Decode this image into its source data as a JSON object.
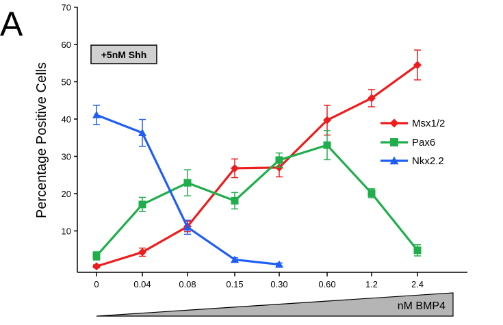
{
  "panel_label": "A",
  "treatment_label": "+5nM Shh",
  "gradient_label": "nM BMP4",
  "chart_data": {
    "type": "line",
    "title": "",
    "xlabel": "",
    "ylabel": "Percentage Positive Cells",
    "categories": [
      "0",
      "0.04",
      "0.08",
      "0.15",
      "0.30",
      "0.60",
      "1.2",
      "2.4"
    ],
    "ylim": [
      0,
      70
    ],
    "yticks": [
      10,
      20,
      30,
      40,
      50,
      60,
      70
    ],
    "legend_position": "right",
    "grid": false,
    "series": [
      {
        "name": "Msx1/2",
        "color": "#ee1c1c",
        "marker": "diamond",
        "values": [
          0.5,
          4.3,
          11.2,
          26.8,
          27.0,
          39.7,
          45.6,
          54.5
        ],
        "errors": [
          0.4,
          1.1,
          1.4,
          2.5,
          2.5,
          4.0,
          2.3,
          4.0
        ]
      },
      {
        "name": "Pax6",
        "color": "#1fae4b",
        "marker": "square",
        "values": [
          3.3,
          17.1,
          22.9,
          18.1,
          29.0,
          33.0,
          20.1,
          4.8
        ],
        "errors": [
          1.1,
          1.9,
          3.5,
          2.2,
          1.9,
          3.9,
          1.2,
          1.5
        ]
      },
      {
        "name": "Nkx2.2",
        "color": "#1f5df5",
        "marker": "triangle",
        "values": [
          41.1,
          36.3,
          11.0,
          2.3,
          1.0,
          null,
          null,
          null
        ],
        "errors": [
          2.6,
          3.6,
          1.9,
          0.5,
          0.4,
          null,
          null,
          null
        ]
      }
    ]
  }
}
